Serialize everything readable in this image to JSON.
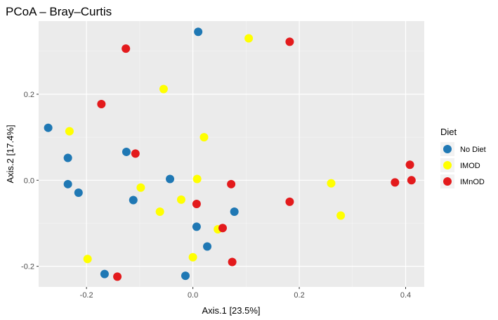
{
  "chart_data": {
    "type": "scatter",
    "title": "PCoA – Bray–Curtis",
    "xlabel": "Axis.1   [23.5%]",
    "ylabel": "Axis.2   [17.4%]",
    "xlim": [
      -0.29,
      0.435
    ],
    "ylim": [
      -0.248,
      0.37
    ],
    "xticks": [
      -0.2,
      0.0,
      0.2,
      0.4
    ],
    "xtick_labels": [
      "-0.2",
      "0.0",
      "0.2",
      "0.4"
    ],
    "yticks": [
      -0.2,
      0.0,
      0.2
    ],
    "ytick_labels": [
      "-0.2",
      "0.0",
      "0.2"
    ],
    "grid": true,
    "legend": {
      "title": "Diet",
      "position": "right"
    },
    "series": [
      {
        "name": "No Diet",
        "color": "#1f78b4",
        "points": [
          {
            "x": 0.01,
            "y": 0.345
          },
          {
            "x": -0.272,
            "y": 0.122
          },
          {
            "x": -0.235,
            "y": 0.052
          },
          {
            "x": -0.125,
            "y": 0.066
          },
          {
            "x": -0.235,
            "y": -0.009
          },
          {
            "x": -0.215,
            "y": -0.029
          },
          {
            "x": -0.043,
            "y": 0.003
          },
          {
            "x": -0.112,
            "y": -0.046
          },
          {
            "x": 0.078,
            "y": -0.073
          },
          {
            "x": 0.007,
            "y": -0.108
          },
          {
            "x": 0.027,
            "y": -0.154
          },
          {
            "x": -0.166,
            "y": -0.218
          },
          {
            "x": -0.014,
            "y": -0.222
          }
        ]
      },
      {
        "name": "IMOD",
        "color": "#ffff00",
        "points": [
          {
            "x": 0.105,
            "y": 0.33
          },
          {
            "x": -0.055,
            "y": 0.212
          },
          {
            "x": -0.232,
            "y": 0.114
          },
          {
            "x": 0.021,
            "y": 0.1
          },
          {
            "x": -0.098,
            "y": -0.017
          },
          {
            "x": 0.008,
            "y": 0.003
          },
          {
            "x": -0.022,
            "y": -0.045
          },
          {
            "x": -0.062,
            "y": -0.073
          },
          {
            "x": 0.047,
            "y": -0.114
          },
          {
            "x": 0.0,
            "y": -0.179
          },
          {
            "x": -0.198,
            "y": -0.183
          },
          {
            "x": 0.26,
            "y": -0.007
          },
          {
            "x": 0.278,
            "y": -0.082
          }
        ]
      },
      {
        "name": "IMnOD",
        "color": "#e31a1c",
        "points": [
          {
            "x": -0.126,
            "y": 0.306
          },
          {
            "x": 0.182,
            "y": 0.322
          },
          {
            "x": -0.172,
            "y": 0.177
          },
          {
            "x": -0.108,
            "y": 0.062
          },
          {
            "x": 0.072,
            "y": -0.009
          },
          {
            "x": 0.007,
            "y": -0.055
          },
          {
            "x": 0.056,
            "y": -0.111
          },
          {
            "x": 0.182,
            "y": -0.05
          },
          {
            "x": 0.074,
            "y": -0.19
          },
          {
            "x": -0.142,
            "y": -0.224
          },
          {
            "x": 0.38,
            "y": -0.005
          },
          {
            "x": 0.408,
            "y": 0.036
          },
          {
            "x": 0.411,
            "y": 0.0
          }
        ]
      }
    ]
  }
}
